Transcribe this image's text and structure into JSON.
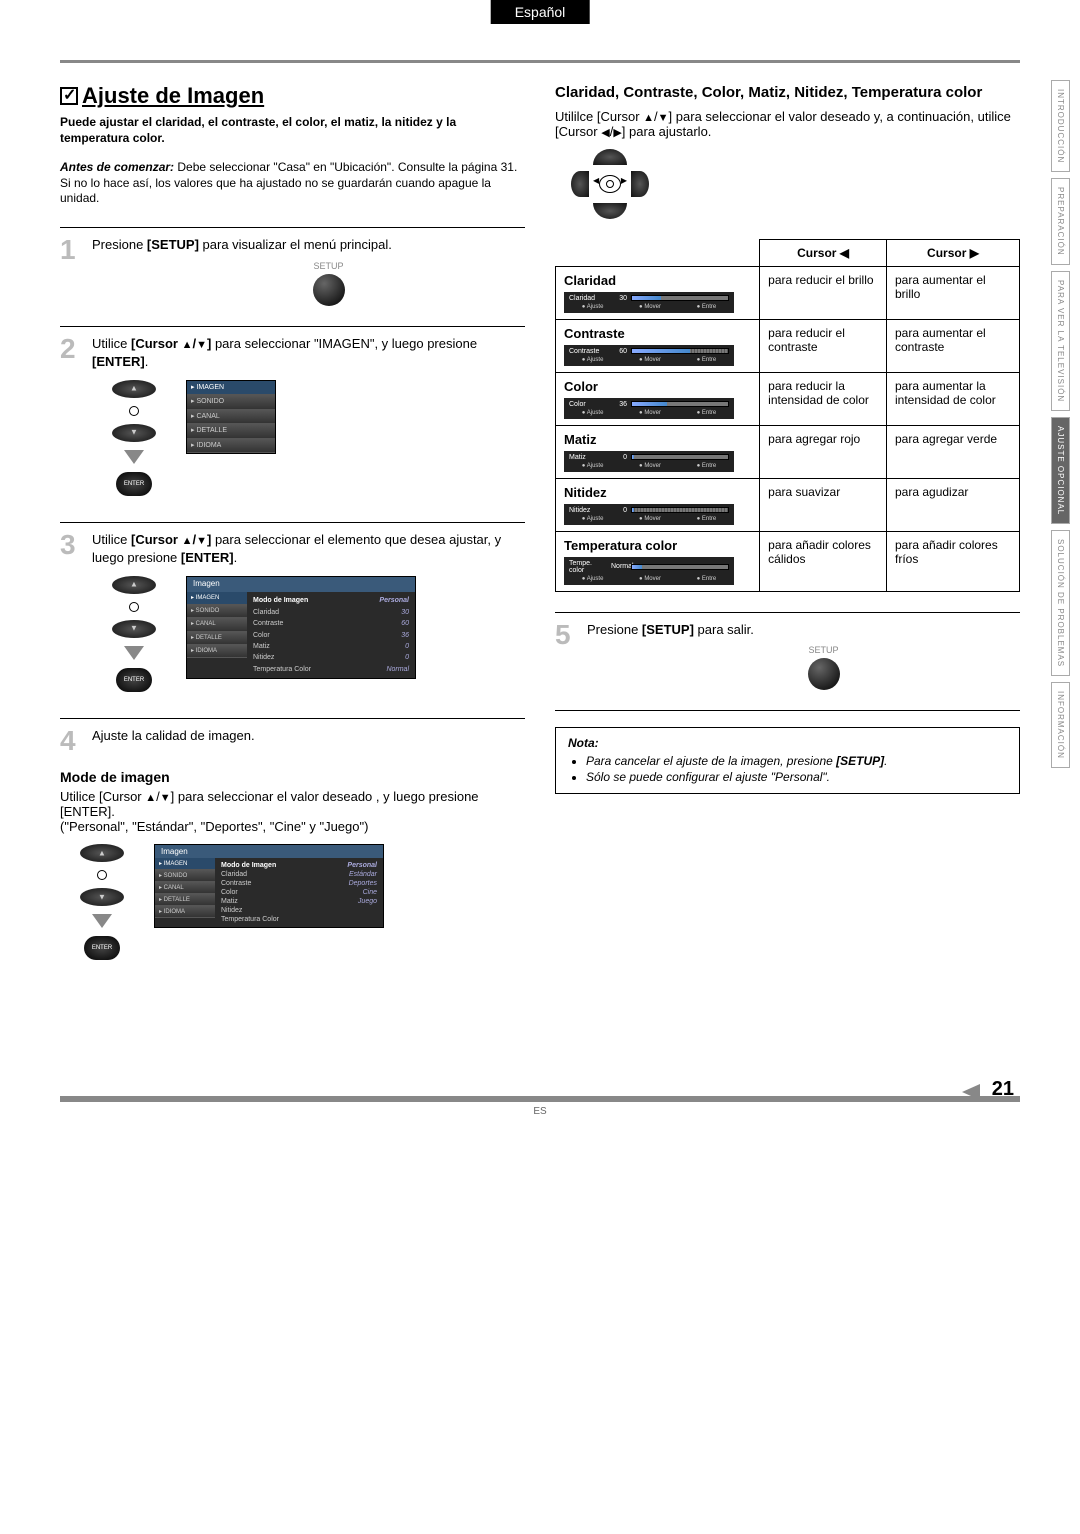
{
  "lang_tab": "Español",
  "side_tabs": [
    "INTRODUCCIÓN",
    "PREPARACIÓN",
    "PARA VER LA TELEVISIÓN",
    "AJUSTE OPCIONAL",
    "SOLUCIÓN DE PROBLEMAS",
    "INFORMACIÓN"
  ],
  "active_side_tab_index": 3,
  "title": "Ajuste de Imagen",
  "intro": "Puede ajustar el claridad, el contraste, el color, el matiz, la nitidez y la temperatura color.",
  "before_label": "Antes de comenzar:",
  "before_text": "Debe seleccionar \"Casa\" en \"Ubicación\". Consulte la página 31. Si no lo hace así, los valores que ha ajustado no se guardarán cuando apague la unidad.",
  "steps": {
    "s1": "Presione [SETUP] para visualizar el menú principal.",
    "s2": "Utilice [Cursor ▲/▼] para seleccionar \"IMAGEN\", y luego presione [ENTER].",
    "s3": "Utilice [Cursor ▲/▼] para seleccionar el elemento que desea ajustar, y luego presione [ENTER].",
    "s4": "Ajuste la calidad de imagen.",
    "s5": "Presione [SETUP] para salir."
  },
  "setup_label": "SETUP",
  "enter_label": "ENTER",
  "mode_h": "Mode de imagen",
  "mode_p1": "Utilice [Cursor ▲/▼] para seleccionar el valor deseado , y luego presione [ENTER].",
  "mode_p2": "(\"Personal\", \"Estándar\", \"Deportes\", \"Cine\" y \"Juego\")",
  "osd_menu": [
    "IMAGEN",
    "SONIDO",
    "CANAL",
    "DETALLE",
    "IDIOMA"
  ],
  "osd_wide_head": "Imagen",
  "osd_items": [
    {
      "k": "Modo de Imagen",
      "v": "Personal"
    },
    {
      "k": "Claridad",
      "v": "30"
    },
    {
      "k": "Contraste",
      "v": "60"
    },
    {
      "k": "Color",
      "v": "36"
    },
    {
      "k": "Matiz",
      "v": "0"
    },
    {
      "k": "Nitidez",
      "v": "0"
    },
    {
      "k": "Temperatura Color",
      "v": "Normal"
    }
  ],
  "osd_modes": [
    "Personal",
    "Estándar",
    "Deportes",
    "Cine",
    "Juego"
  ],
  "right_h": "Claridad, Contraste, Color, Matiz, Nitidez, Temperatura color",
  "right_p": "Utililce [Cursor ▲/▼] para seleccionar el valor deseado y, a continuación, utilice [Cursor ◀/▶] para ajustarlo.",
  "th_left": "Cursor ◀",
  "th_right": "Cursor ▶",
  "slider_btns": [
    "Ajuste",
    "Mover",
    "Entre"
  ],
  "rows": [
    {
      "name": "Claridad",
      "label": "Claridad",
      "val": "30",
      "fill": 30,
      "tick": false,
      "left": "para reducir el brillo",
      "right": "para aumentar el brillo"
    },
    {
      "name": "Contraste",
      "label": "Contraste",
      "val": "60",
      "fill": 60,
      "tick": true,
      "left": "para reducir el contraste",
      "right": "para aumentar el contraste"
    },
    {
      "name": "Color",
      "label": "Color",
      "val": "36",
      "fill": 36,
      "tick": false,
      "left": "para reducir la intensidad de color",
      "right": "para aumentar la intensidad de color"
    },
    {
      "name": "Matiz",
      "label": "Matiz",
      "val": "0",
      "fill": 2,
      "tick": false,
      "left": "para agregar rojo",
      "right": "para agregar verde"
    },
    {
      "name": "Nitidez",
      "label": "Nitidez",
      "val": "0",
      "fill": 2,
      "tick": true,
      "left": "para suavizar",
      "right": "para agudizar"
    },
    {
      "name": "Temperatura color",
      "label": "Tempe. color",
      "val": "Normal",
      "fill": 10,
      "tick": false,
      "left": "para añadir colores cálidos",
      "right": "para añadir colores fríos"
    }
  ],
  "note_h": "Nota:",
  "notes": [
    "Para cancelar el ajuste de la imagen, presione [SETUP].",
    "Sólo se puede configurar el ajuste \"Personal\"."
  ],
  "page_num": "21",
  "es": "ES"
}
